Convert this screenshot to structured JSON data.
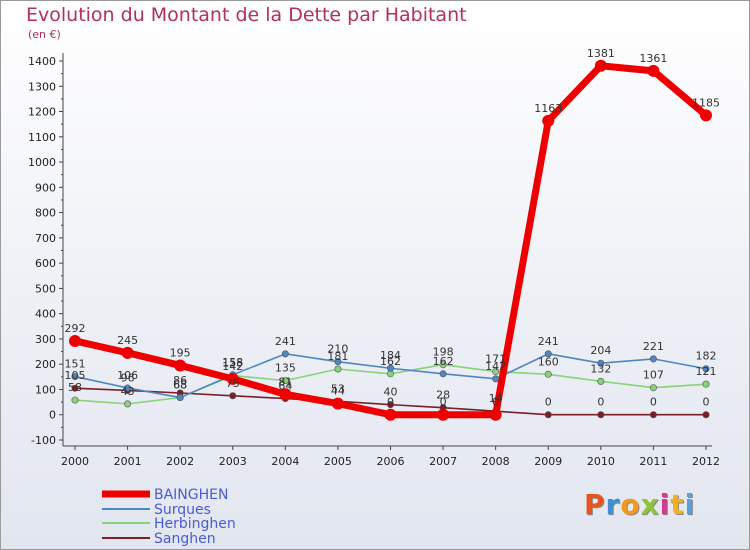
{
  "header": {
    "title": "Evolution du Montant de la Dette par Habitant",
    "subtitle": "(en €)"
  },
  "logo": {
    "text": "Proxiti",
    "letter_colors": [
      "#e8531e",
      "#3f8fd2",
      "#f39a1a",
      "#8fc43a",
      "#d43b8c",
      "#f0b020",
      "#5aa0dc"
    ]
  },
  "chart_data": {
    "type": "line",
    "title": "Evolution du Montant de la Dette par Habitant",
    "subtitle": "(en €)",
    "x": [
      "2000",
      "2001",
      "2002",
      "2003",
      "2004",
      "2005",
      "2006",
      "2007",
      "2008",
      "2009",
      "2010",
      "2011",
      "2012"
    ],
    "ylim": [
      -100,
      1400
    ],
    "yticks": [
      -100,
      0,
      100,
      200,
      300,
      400,
      500,
      600,
      700,
      800,
      900,
      1000,
      1100,
      1200,
      1300,
      1400
    ],
    "grid": false,
    "legend_position": "bottom-left",
    "series": [
      {
        "name": "BAINGHEN",
        "color": "#ee0000",
        "values": [
          292,
          245,
          195,
          142,
          81,
          44,
          0,
          0,
          0,
          1163,
          1381,
          1361,
          1185
        ],
        "labels": [
          "292",
          "245",
          "195",
          "142",
          "81",
          "44",
          "0",
          "0",
          "0",
          "1163",
          "1381",
          "1361",
          "1185"
        ]
      },
      {
        "name": "Surques",
        "color": "#4e86c4",
        "values": [
          151,
          106,
          68,
          158,
          241,
          210,
          184,
          162,
          142,
          241,
          204,
          221,
          182
        ],
        "labels": [
          "151",
          "106",
          "68",
          "158",
          "241",
          "210",
          "184",
          "162",
          "142",
          "241",
          "204",
          "221",
          "182"
        ]
      },
      {
        "name": "Herbinghen",
        "color": "#88d27a",
        "values": [
          58,
          43,
          68,
          155,
          135,
          181,
          162,
          198,
          171,
          160,
          132,
          107,
          121
        ],
        "labels": [
          "58",
          "43",
          "68",
          "155",
          "135",
          "181",
          "162",
          "198",
          "171",
          "160",
          "132",
          "107",
          "121"
        ]
      },
      {
        "name": "Sanghen",
        "color": "#7a1f28",
        "values": [
          105,
          96,
          86,
          75,
          64,
          53,
          40,
          28,
          14,
          0,
          0,
          0,
          0
        ],
        "labels": [
          "105",
          "96",
          "86",
          "75",
          "64",
          "53",
          "40",
          "28",
          "14",
          "0",
          "0",
          "0",
          "0"
        ]
      }
    ]
  }
}
